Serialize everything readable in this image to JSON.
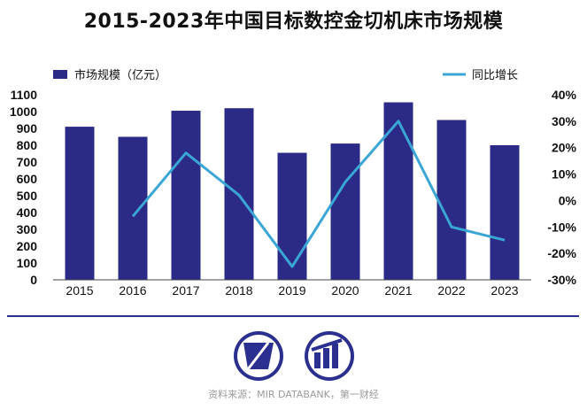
{
  "colors": {
    "bar": "#2b2a86",
    "line": "#3aa6d6",
    "divider": "#2b2f8f",
    "logo_dark": "#2b2f8f"
  },
  "logos": {
    "left_icon": "tilted-panel-logo-icon",
    "right_icon": "bar-chart-logo-icon"
  },
  "source_text": "资料来源：MIR DATABANK，第一财经",
  "chart_data": {
    "type": "bar",
    "title": "2015-2023年中国目标数控金切机床市场规模",
    "categories": [
      "2015",
      "2016",
      "2017",
      "2018",
      "2019",
      "2020",
      "2021",
      "2022",
      "2023"
    ],
    "series": [
      {
        "name": "市场规模（亿元）",
        "type": "bar",
        "axis": "left",
        "values": [
          910,
          850,
          1005,
          1020,
          755,
          810,
          1055,
          950,
          800
        ]
      },
      {
        "name": "同比增长",
        "type": "line",
        "axis": "right",
        "values": [
          null,
          -6,
          18,
          2,
          -25,
          7,
          30,
          -10,
          -15
        ]
      }
    ],
    "y_left": {
      "lim": [
        0,
        1100
      ],
      "ticks": [
        "0",
        "100",
        "200",
        "300",
        "400",
        "500",
        "600",
        "700",
        "800",
        "900",
        "1000",
        "1100"
      ]
    },
    "y_right": {
      "lim": [
        -30,
        40
      ],
      "ticks": [
        "-30%",
        "-20%",
        "-10%",
        "0%",
        "10%",
        "20%",
        "30%",
        "40%"
      ]
    },
    "legend_position": "top",
    "grid": false
  }
}
